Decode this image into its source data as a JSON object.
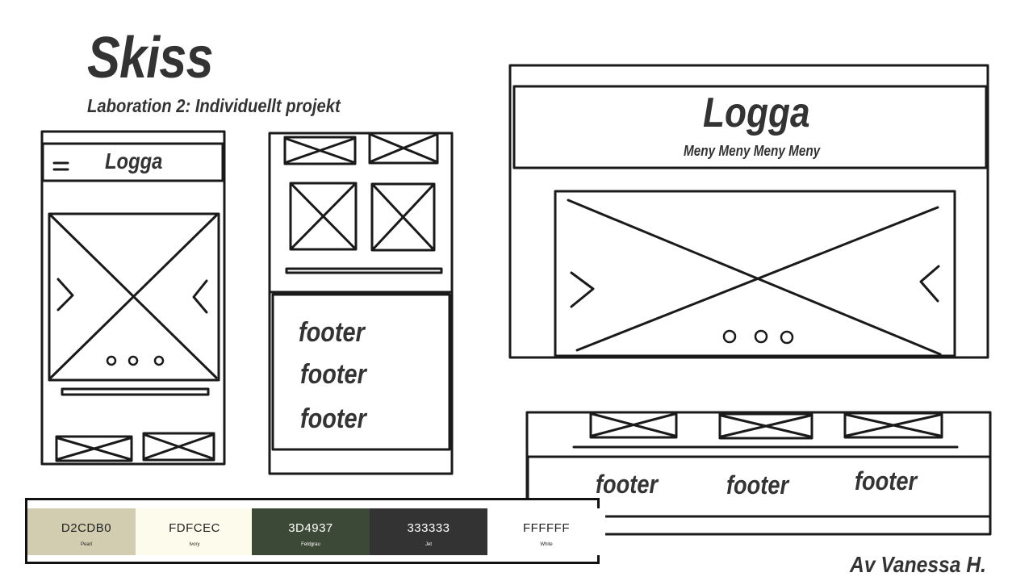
{
  "title": "Skiss",
  "subtitle": "Laboration 2: Individuellt projekt",
  "mobile_wireframe": {
    "menu_icon": "hamburger-icon",
    "logo": "Logga",
    "slider_prev_icon": "chevron-right-icon",
    "slider_next_icon": "chevron-left-icon"
  },
  "mobile_footer_wireframe": {
    "footers": [
      "footer",
      "footer",
      "footer"
    ]
  },
  "desktop_wireframe": {
    "logo": "Logga",
    "menu": "Meny Meny Meny Meny",
    "slider_prev_icon": "chevron-right-icon",
    "slider_next_icon": "chevron-left-icon"
  },
  "desktop_footer_wireframe": {
    "footers": [
      "footer",
      "footer",
      "footer"
    ]
  },
  "palette": [
    {
      "hex": "D2CDB0",
      "name": "Pearl",
      "color": "#D2CDB0",
      "text_color": "#222222"
    },
    {
      "hex": "FDFCEC",
      "name": "Ivory",
      "color": "#FDFCEC",
      "text_color": "#222222"
    },
    {
      "hex": "3D4937",
      "name": "Feldgrau",
      "color": "#3D4937",
      "text_color": "#FFFFFF"
    },
    {
      "hex": "333333",
      "name": "Jet",
      "color": "#333333",
      "text_color": "#FFFFFF"
    },
    {
      "hex": "FFFFFF",
      "name": "White",
      "color": "#FFFFFF",
      "text_color": "#222222"
    }
  ],
  "author": "Av Vanessa H."
}
